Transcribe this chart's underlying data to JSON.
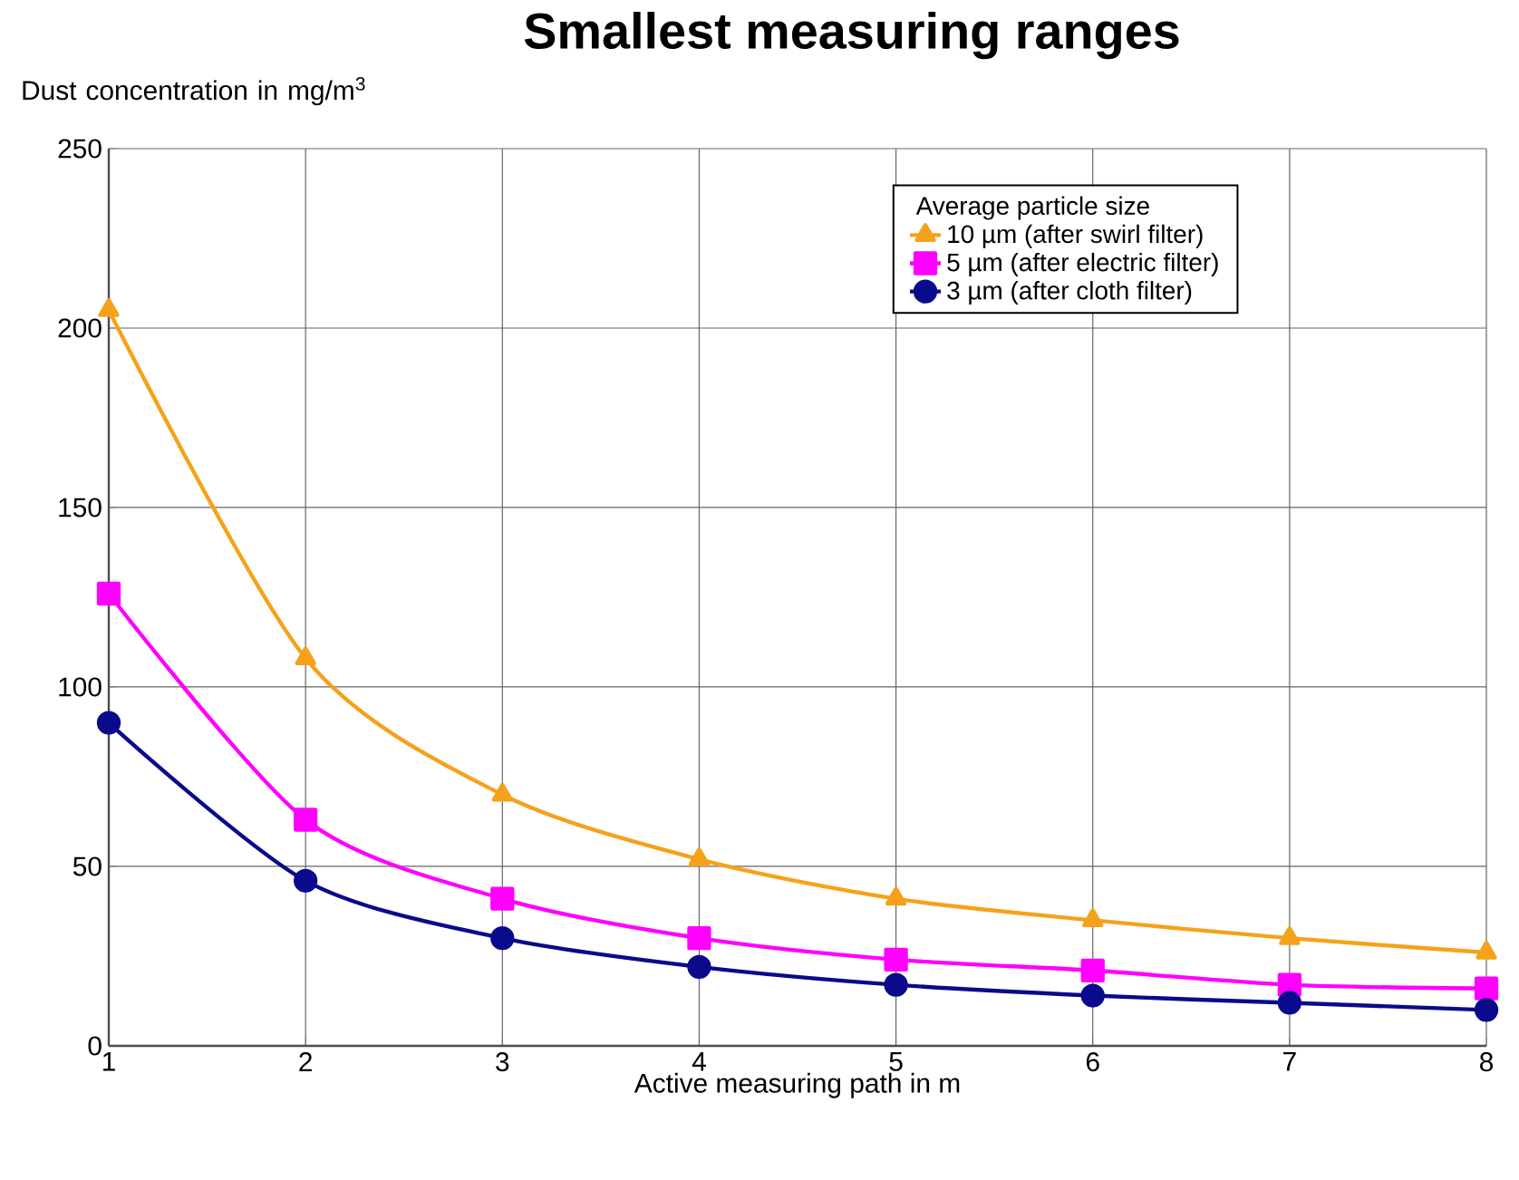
{
  "chart_data": {
    "type": "line",
    "title": "Smallest measuring ranges",
    "xlabel": "Active measuring path in m",
    "ylabel": "Dust concentration in mg/m$^{3}$",
    "legend_title": "Average particle size",
    "x": [
      1,
      2,
      3,
      4,
      5,
      6,
      7,
      8
    ],
    "series": [
      {
        "name": "10 µm (after swirl filter)",
        "color": "#f5a21b",
        "marker": "triangle",
        "values": [
          205,
          108,
          70,
          52,
          41,
          35,
          30,
          26
        ]
      },
      {
        "name": "5 µm (after electric filter)",
        "color": "#ff00ff",
        "marker": "square",
        "values": [
          126,
          63,
          41,
          30,
          24,
          21,
          17,
          16
        ]
      },
      {
        "name": "3 µm (after cloth filter)",
        "color": "#0a0a8c",
        "marker": "circle",
        "values": [
          90,
          46,
          30,
          22,
          17,
          14,
          12,
          10
        ]
      }
    ],
    "xlim": [
      1,
      8
    ],
    "xticks": [
      1,
      2,
      3,
      4,
      5,
      6,
      7,
      8
    ],
    "ylim": [
      0,
      250
    ],
    "yticks": [
      0,
      50,
      100,
      150,
      200,
      250
    ],
    "grid": true,
    "legend": "top right",
    "line_style": "solid"
  }
}
